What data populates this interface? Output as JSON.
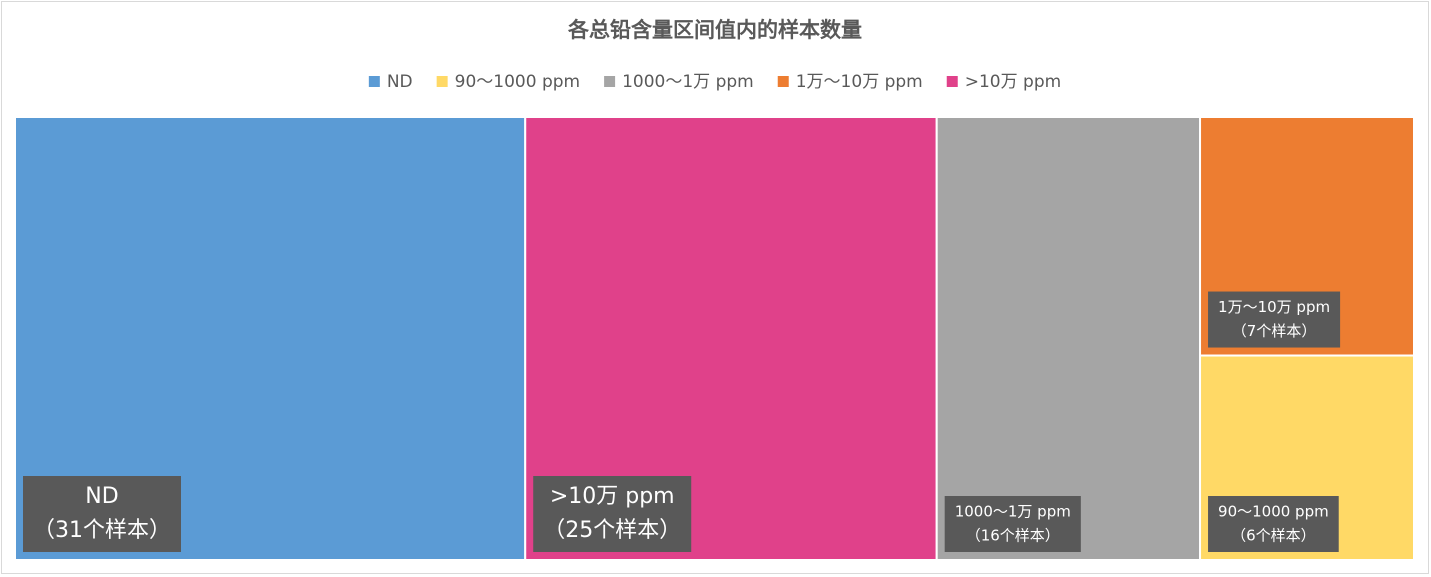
{
  "chart_data": {
    "type": "treemap",
    "title": "各总铅含量区间值内的样本数量",
    "categories": [
      "ND",
      ">10万 ppm",
      "1000～1万 ppm",
      "1万～10万 ppm",
      "90～1000 ppm"
    ],
    "values": [
      31,
      25,
      16,
      7,
      6
    ],
    "value_labels": [
      "（31个样本）",
      "（25个样本）",
      "（16个样本）",
      "（7个样本）",
      "（6个样本）"
    ],
    "colors": [
      "#5b9bd5",
      "#e0418a",
      "#a5a5a5",
      "#ed7d31",
      "#ffd966"
    ],
    "legend": [
      {
        "name": "ND",
        "color": "#5b9bd5"
      },
      {
        "name": "90～1000 ppm",
        "color": "#ffd966"
      },
      {
        "name": "1000～1万 ppm",
        "color": "#a5a5a5"
      },
      {
        "name": "1万～10万 ppm",
        "color": "#ed7d31"
      },
      {
        "name": ">10万 ppm",
        "color": "#e0418a"
      }
    ]
  }
}
